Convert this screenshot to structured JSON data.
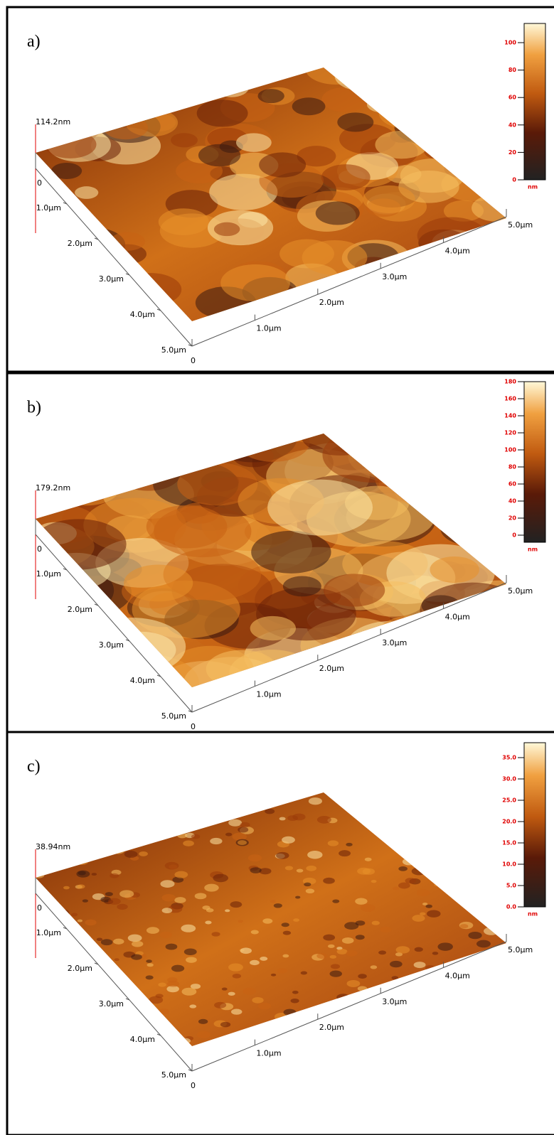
{
  "panels": [
    {
      "label": "a)",
      "z_max": "114.2nm",
      "z_zero": "0",
      "left_axis": [
        "1.0µm",
        "2.0µm",
        "3.0µm",
        "4.0µm",
        "5.0µm"
      ],
      "origin": "0",
      "right_axis": [
        "1.0µm",
        "2.0µm",
        "3.0µm",
        "4.0µm",
        "5.0µm"
      ],
      "colorbar": {
        "ticks": [
          "100",
          "80",
          "60",
          "40",
          "20",
          "0"
        ],
        "unit": "nm"
      }
    },
    {
      "label": "b)",
      "z_max": "179.2nm",
      "z_zero": "0",
      "left_axis": [
        "1.0µm",
        "2.0µm",
        "3.0µm",
        "4.0µm",
        "5.0µm"
      ],
      "origin": "0",
      "right_axis": [
        "1.0µm",
        "2.0µm",
        "3.0µm",
        "4.0µm",
        "5.0µm"
      ],
      "colorbar": {
        "ticks": [
          "180",
          "160",
          "140",
          "120",
          "100",
          "80",
          "60",
          "40",
          "20",
          "0"
        ],
        "unit": "nm"
      }
    },
    {
      "label": "c)",
      "z_max": "38.94nm",
      "z_zero": "0",
      "left_axis": [
        "1.0µm",
        "2.0µm",
        "3.0µm",
        "4.0µm",
        "5.0µm"
      ],
      "origin": "0",
      "right_axis": [
        "1.0µm",
        "2.0µm",
        "3.0µm",
        "4.0µm",
        "5.0µm"
      ],
      "colorbar": {
        "ticks": [
          "35.0",
          "30.0",
          "25.0",
          "20.0",
          "15.0",
          "10.0",
          "5.0",
          "0.0"
        ],
        "unit": "nm"
      }
    }
  ]
}
